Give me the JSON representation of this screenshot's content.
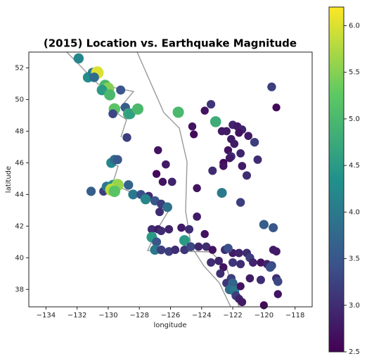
{
  "chart_data": {
    "type": "scatter",
    "title": "(2015) Location vs. Earthquake Magnitude",
    "x_label": "longitude",
    "y_label": "latitude",
    "colormap": "viridis",
    "xlim": [
      -135.1,
      -116.9
    ],
    "ylim": [
      36.9,
      53.0
    ],
    "xticks": [
      {
        "value": -134,
        "label": "−134"
      },
      {
        "value": -132,
        "label": "−132"
      },
      {
        "value": -130,
        "label": "−130"
      },
      {
        "value": -128,
        "label": "−128"
      },
      {
        "value": -126,
        "label": "−126"
      },
      {
        "value": -124,
        "label": "−124"
      },
      {
        "value": -122,
        "label": "−122"
      },
      {
        "value": -120,
        "label": "−120"
      },
      {
        "value": -118,
        "label": "−118"
      }
    ],
    "yticks": [
      38,
      40,
      42,
      44,
      46,
      48,
      50,
      52
    ],
    "clim": [
      2.5,
      6.2
    ],
    "cticks": [
      2.5,
      {
        "value": 3,
        "label": "3.0"
      },
      3.5,
      {
        "value": 4,
        "label": "4.0"
      },
      4.5,
      {
        "value": 5,
        "label": "5.0"
      },
      5.5,
      {
        "value": 6,
        "label": "6.0"
      }
    ],
    "x": [
      -131.9,
      -131.3,
      -131.0,
      -130.7,
      -130.9,
      -130.2,
      -130.0,
      -130.4,
      -129.9,
      -129.2,
      -129.6,
      -129.7,
      -128.9,
      -128.7,
      -128.6,
      -128.1,
      -128.8,
      -125.5,
      -123.1,
      -119.5,
      -119.2,
      -123.4,
      -123.8,
      -124.6,
      -124.5,
      -122.7,
      -122.4,
      -122.0,
      -121.7,
      -121.4,
      -121.6,
      -122.1,
      -121.0,
      -120.6,
      -121.9,
      -122.3,
      -122.1,
      -121.5,
      -122.2,
      -121.4,
      -122.6,
      -120.4,
      -123.3,
      -122.6,
      -121.1,
      -122.7,
      -121.5,
      -124.3,
      -124.3,
      -126.8,
      -126.3,
      -126.9,
      -125.9,
      -126.5,
      -129.8,
      -129.6,
      -129.4,
      -131.1,
      -130.3,
      -130.1,
      -129.7,
      -129.4,
      -129.8,
      -129.6,
      -128.7,
      -128.4,
      -127.9,
      -127.4,
      -127.6,
      -127.0,
      -126.6,
      -126.2,
      -126.7,
      -127.2,
      -126.8,
      -126.6,
      -126.1,
      -125.3,
      -127.2,
      -126.9,
      -127.0,
      -126.6,
      -125.1,
      -124.8,
      -123.8,
      -126.1,
      -125.7,
      -125.1,
      -124.7,
      -124.2,
      -123.7,
      -123.3,
      -122.5,
      -122.0,
      -121.6,
      -121.1,
      -120.9,
      -120.2,
      -119.8,
      -119.5,
      -119.4,
      -119.2,
      -122.3,
      -123.4,
      -122.9,
      -122.6,
      -122.8,
      -122.1,
      -122.4,
      -122.0,
      -122.2,
      -121.9,
      -121.8,
      -121.6,
      -121.4,
      -121.5,
      -120.9,
      -120.2,
      -119.6,
      -119.2,
      -119.1,
      -119.1,
      -120.0,
      -120.0,
      -119.4,
      -122.0,
      -121.5,
      -120.7
    ],
    "y": [
      52.6,
      51.4,
      51.7,
      51.7,
      51.4,
      50.9,
      50.7,
      50.6,
      50.3,
      50.6,
      49.4,
      49.1,
      49.5,
      49.1,
      49.1,
      49.4,
      47.6,
      49.2,
      48.6,
      50.8,
      49.5,
      49.7,
      49.3,
      48.3,
      47.8,
      48.0,
      48.0,
      48.4,
      48.3,
      48.1,
      47.9,
      47.5,
      47.7,
      47.3,
      47.2,
      46.8,
      46.4,
      46.6,
      46.3,
      45.8,
      46.0,
      46.2,
      45.5,
      45.8,
      45.2,
      44.1,
      43.5,
      44.4,
      42.6,
      46.8,
      45.9,
      45.3,
      44.8,
      44.8,
      46.0,
      46.2,
      46.2,
      44.2,
      44.2,
      44.5,
      44.6,
      44.6,
      44.3,
      44.2,
      44.6,
      44.0,
      44.0,
      43.9,
      43.7,
      43.6,
      43.4,
      43.2,
      42.9,
      41.8,
      41.8,
      41.7,
      41.8,
      41.9,
      41.3,
      41.0,
      40.5,
      40.5,
      41.1,
      41.8,
      41.5,
      40.4,
      40.5,
      40.5,
      40.7,
      40.7,
      40.7,
      40.5,
      40.5,
      40.3,
      40.3,
      40.3,
      40.0,
      39.7,
      39.6,
      39.5,
      40.5,
      40.4,
      40.6,
      39.7,
      39.8,
      39.4,
      39.0,
      38.7,
      38.4,
      38.4,
      38.0,
      37.9,
      37.6,
      37.4,
      37.2,
      38.2,
      38.7,
      38.6,
      39.4,
      38.7,
      38.5,
      37.7,
      37.0,
      42.1,
      41.9,
      39.7,
      39.6,
      39.7
    ],
    "values": [
      4.2,
      4.3,
      4.0,
      6.0,
      3.8,
      5.0,
      5.5,
      4.5,
      5.0,
      3.5,
      5.2,
      3.3,
      3.6,
      4.8,
      4.6,
      5.0,
      3.2,
      5.0,
      4.8,
      3.2,
      2.6,
      3.1,
      2.7,
      2.7,
      2.6,
      2.8,
      2.8,
      2.9,
      2.8,
      2.9,
      2.7,
      2.8,
      2.8,
      3.2,
      2.8,
      2.7,
      3.0,
      2.9,
      2.8,
      2.8,
      2.6,
      3.0,
      3.0,
      2.7,
      3.0,
      4.0,
      3.2,
      2.7,
      2.8,
      2.7,
      2.8,
      2.6,
      2.9,
      2.7,
      4.2,
      3.8,
      3.5,
      3.6,
      3.2,
      4.0,
      4.3,
      5.6,
      5.8,
      5.2,
      3.7,
      4.0,
      3.4,
      3.0,
      4.2,
      3.5,
      3.2,
      3.9,
      3.0,
      3.0,
      2.8,
      3.0,
      2.9,
      2.8,
      4.5,
      3.5,
      4.0,
      3.2,
      4.5,
      3.0,
      2.7,
      3.2,
      3.0,
      3.1,
      3.3,
      2.9,
      3.0,
      2.7,
      3.0,
      2.8,
      2.9,
      3.0,
      3.2,
      2.7,
      2.9,
      3.3,
      2.8,
      2.8,
      3.4,
      3.0,
      2.9,
      2.7,
      3.0,
      3.2,
      3.1,
      3.7,
      3.8,
      4.0,
      3.2,
      2.9,
      2.8,
      2.7,
      2.8,
      3.0,
      3.4,
      3.0,
      3.3,
      2.7,
      2.6,
      3.6,
      3.5,
      3.1,
      3.0,
      2.9
    ]
  }
}
